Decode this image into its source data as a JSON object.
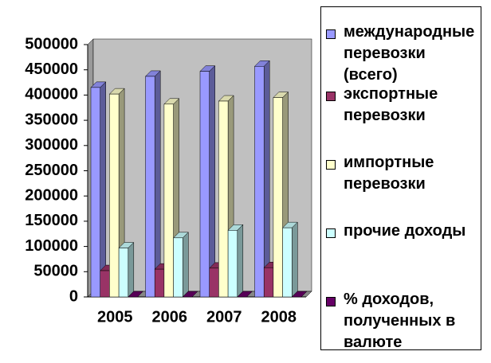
{
  "chart_data": {
    "type": "bar3d",
    "categories": [
      "2005",
      "2006",
      "2007",
      "2008"
    ],
    "series": [
      {
        "name": "международные перевозки (всего)",
        "color": "#9999ff",
        "values": [
          415000,
          437000,
          447000,
          457000
        ]
      },
      {
        "name": "экспортные перевозки",
        "color": "#993366",
        "values": [
          52000,
          55000,
          57000,
          58000
        ]
      },
      {
        "name": "импортные перевозки",
        "color": "#ffffcc",
        "values": [
          402000,
          382000,
          388000,
          395000
        ]
      },
      {
        "name": "прочие доходы",
        "color": "#ccffff",
        "values": [
          97000,
          117000,
          132000,
          137000
        ]
      },
      {
        "name": "% доходов, полученных в валюте",
        "color": "#660066",
        "values": [
          0,
          0,
          0,
          0
        ]
      }
    ],
    "ylim": [
      0,
      500000
    ],
    "yticks": [
      0,
      50000,
      100000,
      150000,
      200000,
      250000,
      300000,
      350000,
      400000,
      450000,
      500000
    ],
    "wall_color": "#c0c0c0"
  }
}
